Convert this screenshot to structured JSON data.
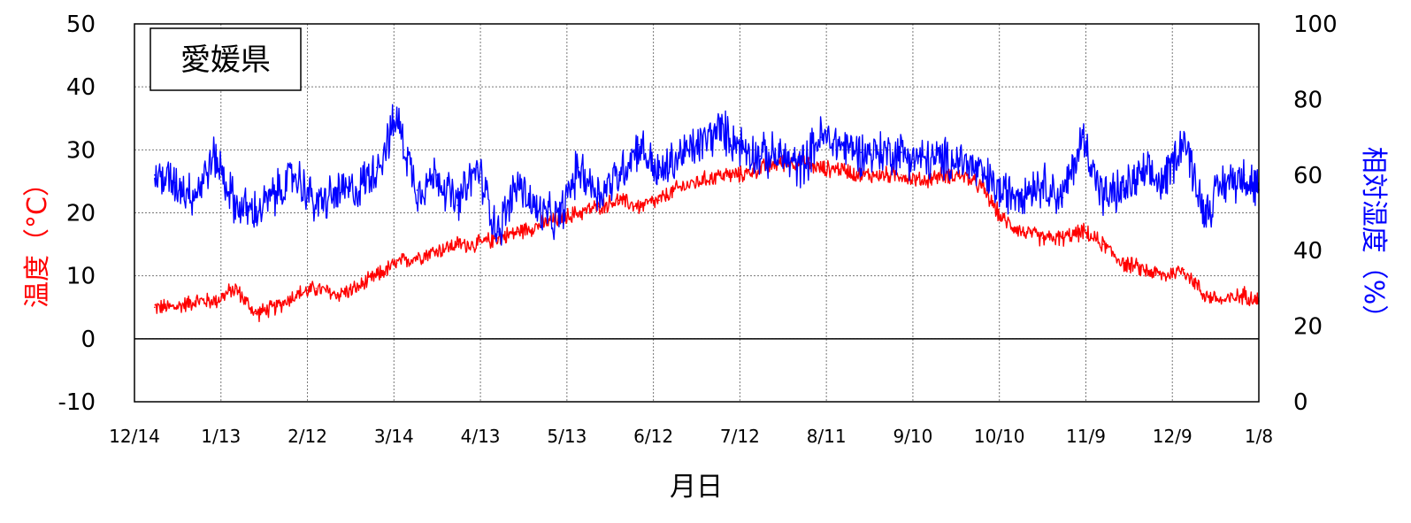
{
  "chart_data": {
    "type": "line",
    "title": "愛媛県",
    "xlabel": "月日",
    "ylabel": "温度（°C）",
    "ylabel_right": "相対湿度（%）",
    "x_ticks": [
      "12/14",
      "1/13",
      "2/12",
      "3/14",
      "4/13",
      "5/13",
      "6/12",
      "7/12",
      "8/11",
      "9/10",
      "10/10",
      "11/9",
      "12/9",
      "1/8"
    ],
    "ylim": [
      -10,
      50
    ],
    "yticks": [
      -10,
      0,
      10,
      20,
      30,
      40,
      50
    ],
    "ylim_right": [
      0,
      100
    ],
    "yticks_right": [
      0,
      20,
      40,
      60,
      80,
      100
    ],
    "grid": true,
    "colors": {
      "temperature": "#ff0000",
      "humidity": "#0000ff",
      "axis_left_label": "#ff0000",
      "axis_right_label": "#0000ff"
    },
    "series": [
      {
        "axis": "left",
        "x": [
          "12/21",
          "12/28",
          "1/4",
          "1/11",
          "1/18",
          "1/25",
          "2/1",
          "2/8",
          "2/15",
          "2/22",
          "3/1",
          "3/8",
          "3/15",
          "3/22",
          "3/29",
          "4/5",
          "4/12",
          "4/19",
          "4/26",
          "5/3",
          "5/10",
          "5/17",
          "5/24",
          "5/31",
          "6/7",
          "6/14",
          "6/21",
          "6/28",
          "7/5",
          "7/12",
          "7/19",
          "7/26",
          "8/2",
          "8/9",
          "8/16",
          "8/23",
          "8/30",
          "9/6",
          "9/13",
          "9/20",
          "9/27",
          "10/4",
          "10/11",
          "10/18",
          "10/25",
          "11/1",
          "11/8",
          "11/15",
          "11/22",
          "11/29",
          "12/6",
          "12/13",
          "12/20",
          "12/27",
          "1/3",
          "1/8"
        ],
        "values": [
          5,
          5,
          6,
          6,
          8,
          4,
          5,
          7,
          8,
          7,
          8,
          10,
          12,
          13,
          14,
          15,
          15,
          16,
          17,
          18,
          19,
          20,
          21,
          22,
          21,
          22,
          24,
          25,
          26,
          26,
          27,
          28,
          28,
          27,
          27,
          26,
          26,
          26,
          25,
          26,
          26,
          24,
          19,
          17,
          16,
          16,
          17,
          15,
          12,
          11,
          10,
          11,
          7,
          6,
          7,
          6
        ]
      },
      {
        "axis": "right",
        "x": [
          "12/21",
          "12/28",
          "1/4",
          "1/11",
          "1/18",
          "1/25",
          "2/1",
          "2/8",
          "2/15",
          "2/22",
          "3/1",
          "3/8",
          "3/15",
          "3/22",
          "3/29",
          "4/5",
          "4/12",
          "4/19",
          "4/26",
          "5/3",
          "5/10",
          "5/17",
          "5/24",
          "5/31",
          "6/7",
          "6/14",
          "6/21",
          "6/28",
          "7/5",
          "7/12",
          "7/19",
          "7/26",
          "8/2",
          "8/9",
          "8/16",
          "8/23",
          "8/30",
          "9/6",
          "9/13",
          "9/20",
          "9/27",
          "10/4",
          "10/11",
          "10/18",
          "10/25",
          "11/1",
          "11/8",
          "11/15",
          "11/22",
          "11/29",
          "12/6",
          "12/13",
          "12/20",
          "12/27",
          "1/3",
          "1/8"
        ],
        "values": [
          60,
          58,
          55,
          65,
          52,
          50,
          55,
          60,
          52,
          55,
          56,
          62,
          75,
          56,
          60,
          52,
          62,
          45,
          58,
          50,
          48,
          62,
          55,
          60,
          68,
          60,
          65,
          68,
          72,
          68,
          65,
          65,
          62,
          70,
          68,
          66,
          66,
          66,
          64,
          64,
          64,
          60,
          55,
          56,
          58,
          54,
          70,
          54,
          56,
          60,
          58,
          70,
          50,
          58,
          60,
          56
        ]
      }
    ]
  }
}
